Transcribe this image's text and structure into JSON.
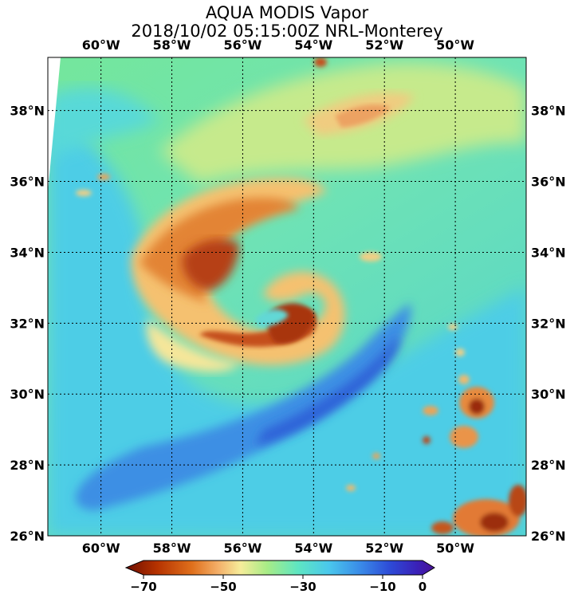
{
  "title_line1": "AQUA MODIS Vapor",
  "title_line2": "2018/10/02 05:15:00Z NRL-Monterey",
  "colors": {
    "frame": "#000000",
    "grid": "#000000",
    "no_data": "#ffffff"
  },
  "map": {
    "lon_range": [
      -61.5,
      -48.0
    ],
    "lat_range": [
      26.0,
      39.5
    ],
    "lon_ticks": [
      {
        "value": -60,
        "label": "60°W"
      },
      {
        "value": -58,
        "label": "58°W"
      },
      {
        "value": -56,
        "label": "56°W"
      },
      {
        "value": -54,
        "label": "54°W"
      },
      {
        "value": -52,
        "label": "52°W"
      },
      {
        "value": -50,
        "label": "50°W"
      }
    ],
    "lat_ticks": [
      {
        "value": 38,
        "label": "38°N"
      },
      {
        "value": 36,
        "label": "36°N"
      },
      {
        "value": 34,
        "label": "34°N"
      },
      {
        "value": 32,
        "label": "32°N"
      },
      {
        "value": 30,
        "label": "30°N"
      },
      {
        "value": 28,
        "label": "28°N"
      },
      {
        "value": 26,
        "label": "26°N"
      }
    ]
  },
  "colorbar": {
    "min": -70,
    "max": 0,
    "ticks": [
      {
        "value": -70,
        "label": "−70"
      },
      {
        "value": -50,
        "label": "−50"
      },
      {
        "value": -30,
        "label": "−30"
      },
      {
        "value": -10,
        "label": "−10"
      },
      {
        "value": 0,
        "label": "0"
      }
    ],
    "stops": [
      {
        "value": -70,
        "color": "#6e0e00"
      },
      {
        "value": -63,
        "color": "#b53200"
      },
      {
        "value": -55,
        "color": "#e0701c"
      },
      {
        "value": -49,
        "color": "#f4b06a"
      },
      {
        "value": -44,
        "color": "#f6ed9a"
      },
      {
        "value": -38,
        "color": "#a8ec86"
      },
      {
        "value": -31,
        "color": "#5ee6c2"
      },
      {
        "value": -24,
        "color": "#4ac8ec"
      },
      {
        "value": -17,
        "color": "#3a8ce8"
      },
      {
        "value": -10,
        "color": "#2d4ad6"
      },
      {
        "value": -4,
        "color": "#3a21b8"
      },
      {
        "value": 0,
        "color": "#4a1296"
      }
    ]
  }
}
